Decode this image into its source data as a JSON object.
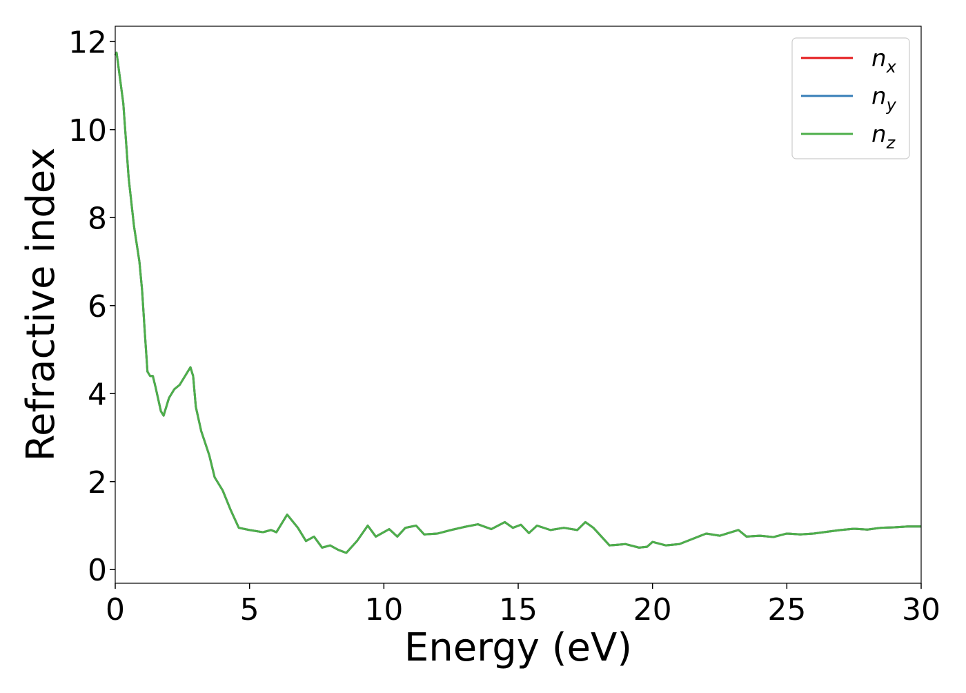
{
  "chart_data": {
    "type": "line",
    "xlabel": "Energy (eV)",
    "ylabel": "Refractive index",
    "xlim": [
      0,
      30
    ],
    "ylim": [
      -0.31,
      12.35
    ],
    "xticks": [
      0,
      5,
      10,
      15,
      20,
      25,
      30
    ],
    "yticks": [
      0,
      2,
      4,
      6,
      8,
      10,
      12
    ],
    "legend_loc": "upper right",
    "x": [
      0,
      0.05,
      0.3,
      0.5,
      0.7,
      0.9,
      1.0,
      1.1,
      1.2,
      1.3,
      1.4,
      1.5,
      1.7,
      1.8,
      2.0,
      2.2,
      2.4,
      2.6,
      2.8,
      2.9,
      3.0,
      3.2,
      3.5,
      3.7,
      4.0,
      4.3,
      4.6,
      5.0,
      5.5,
      5.8,
      6.0,
      6.4,
      6.8,
      7.1,
      7.4,
      7.7,
      8.0,
      8.3,
      8.6,
      9.0,
      9.4,
      9.7,
      10.2,
      10.5,
      10.8,
      11.2,
      11.5,
      12.0,
      12.5,
      13.0,
      13.5,
      14.0,
      14.5,
      14.8,
      15.1,
      15.4,
      15.7,
      16.2,
      16.7,
      17.2,
      17.5,
      17.8,
      18.4,
      19.0,
      19.5,
      19.8,
      20.0,
      20.5,
      21.0,
      21.5,
      22.0,
      22.5,
      23.2,
      23.5,
      24.0,
      24.5,
      25.0,
      25.5,
      26.0,
      26.5,
      27.0,
      27.5,
      28.0,
      28.5,
      29.0,
      29.5,
      30.0
    ],
    "series": [
      {
        "name": "nx",
        "color": "#e41a1c",
        "values": [
          11.69,
          11.75,
          10.6,
          8.9,
          7.8,
          7.0,
          6.35,
          5.4,
          4.5,
          4.4,
          4.4,
          4.15,
          3.6,
          3.5,
          3.9,
          4.1,
          4.2,
          4.4,
          4.6,
          4.4,
          3.7,
          3.15,
          2.6,
          2.1,
          1.8,
          1.35,
          0.95,
          0.9,
          0.85,
          0.9,
          0.85,
          1.25,
          0.95,
          0.65,
          0.75,
          0.5,
          0.55,
          0.45,
          0.38,
          0.65,
          1.0,
          0.75,
          0.92,
          0.75,
          0.95,
          1.0,
          0.8,
          0.82,
          0.9,
          0.97,
          1.03,
          0.92,
          1.08,
          0.95,
          1.02,
          0.83,
          1.0,
          0.9,
          0.95,
          0.9,
          1.08,
          0.95,
          0.55,
          0.58,
          0.5,
          0.52,
          0.63,
          0.55,
          0.58,
          0.7,
          0.82,
          0.77,
          0.9,
          0.75,
          0.77,
          0.74,
          0.82,
          0.8,
          0.82,
          0.86,
          0.9,
          0.93,
          0.91,
          0.95,
          0.96,
          0.98,
          0.98
        ]
      },
      {
        "name": "ny",
        "color": "#377eb8",
        "values": [
          11.69,
          11.75,
          10.6,
          8.9,
          7.8,
          7.0,
          6.35,
          5.4,
          4.5,
          4.4,
          4.4,
          4.15,
          3.6,
          3.5,
          3.9,
          4.1,
          4.2,
          4.4,
          4.6,
          4.4,
          3.7,
          3.15,
          2.6,
          2.1,
          1.8,
          1.35,
          0.95,
          0.9,
          0.85,
          0.9,
          0.85,
          1.25,
          0.95,
          0.65,
          0.75,
          0.5,
          0.55,
          0.45,
          0.38,
          0.65,
          1.0,
          0.75,
          0.92,
          0.75,
          0.95,
          1.0,
          0.8,
          0.82,
          0.9,
          0.97,
          1.03,
          0.92,
          1.08,
          0.95,
          1.02,
          0.83,
          1.0,
          0.9,
          0.95,
          0.9,
          1.08,
          0.95,
          0.55,
          0.58,
          0.5,
          0.52,
          0.63,
          0.55,
          0.58,
          0.7,
          0.82,
          0.77,
          0.9,
          0.75,
          0.77,
          0.74,
          0.82,
          0.8,
          0.82,
          0.86,
          0.9,
          0.93,
          0.91,
          0.95,
          0.96,
          0.98,
          0.98
        ]
      },
      {
        "name": "nz",
        "color": "#4daf4a",
        "values": [
          11.69,
          11.75,
          10.6,
          8.9,
          7.8,
          7.0,
          6.35,
          5.4,
          4.5,
          4.4,
          4.4,
          4.15,
          3.6,
          3.5,
          3.9,
          4.1,
          4.2,
          4.4,
          4.6,
          4.4,
          3.7,
          3.15,
          2.6,
          2.1,
          1.8,
          1.35,
          0.95,
          0.9,
          0.85,
          0.9,
          0.85,
          1.25,
          0.95,
          0.65,
          0.75,
          0.5,
          0.55,
          0.45,
          0.38,
          0.65,
          1.0,
          0.75,
          0.92,
          0.75,
          0.95,
          1.0,
          0.8,
          0.82,
          0.9,
          0.97,
          1.03,
          0.92,
          1.08,
          0.95,
          1.02,
          0.83,
          1.0,
          0.9,
          0.95,
          0.9,
          1.08,
          0.95,
          0.55,
          0.58,
          0.5,
          0.52,
          0.63,
          0.55,
          0.58,
          0.7,
          0.82,
          0.77,
          0.9,
          0.75,
          0.77,
          0.74,
          0.82,
          0.8,
          0.82,
          0.86,
          0.9,
          0.93,
          0.91,
          0.95,
          0.96,
          0.98,
          0.98
        ]
      }
    ]
  }
}
